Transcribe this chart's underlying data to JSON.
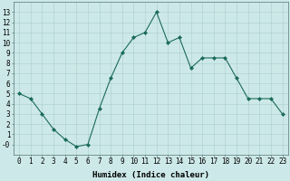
{
  "x": [
    0,
    1,
    2,
    3,
    4,
    5,
    6,
    7,
    8,
    9,
    10,
    11,
    12,
    13,
    14,
    15,
    16,
    17,
    18,
    19,
    20,
    21,
    22,
    23
  ],
  "y": [
    5,
    4.5,
    3,
    1.5,
    0.5,
    -0.2,
    0,
    3.5,
    6.5,
    9,
    10.5,
    11,
    13,
    10,
    10.5,
    7.5,
    8.5,
    8.5,
    8.5,
    6.5,
    4.5,
    4.5,
    4.5,
    3
  ],
  "line_color": "#1a6b5a",
  "marker": "D",
  "marker_size": 2,
  "bg_color": "#cde8e8",
  "grid_color": "#aacece",
  "xlabel": "Humidex (Indice chaleur)",
  "ylim": [
    -1,
    14
  ],
  "xlim": [
    -0.5,
    23.5
  ],
  "yticks": [
    0,
    1,
    2,
    3,
    4,
    5,
    6,
    7,
    8,
    9,
    10,
    11,
    12,
    13
  ],
  "ytick_labels": [
    "-0",
    "1",
    "2",
    "3",
    "4",
    "5",
    "6",
    "7",
    "8",
    "9",
    "10",
    "11",
    "12",
    "13"
  ],
  "xticks": [
    0,
    1,
    2,
    3,
    4,
    5,
    6,
    7,
    8,
    9,
    10,
    11,
    12,
    13,
    14,
    15,
    16,
    17,
    18,
    19,
    20,
    21,
    22,
    23
  ],
  "xtick_labels": [
    "0",
    "1",
    "2",
    "3",
    "4",
    "5",
    "6",
    "7",
    "8",
    "9",
    "10",
    "11",
    "12",
    "13",
    "14",
    "15",
    "16",
    "17",
    "18",
    "19",
    "20",
    "21",
    "22",
    "23"
  ],
  "label_fontsize": 6.5,
  "tick_fontsize": 5.5
}
